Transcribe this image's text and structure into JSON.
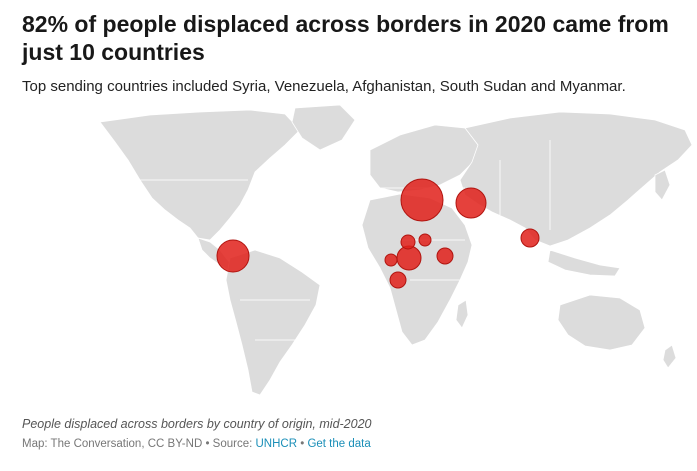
{
  "header": {
    "title": "82% of people displaced across borders in 2020 came from just 10 countries",
    "subtitle": "Top sending countries included Syria, Venezuela, Afghanistan, South Sudan and Myanmar."
  },
  "map": {
    "land_color": "#dcdcdc",
    "bubble_color": "#e0201a",
    "bubbles": [
      {
        "country": "Syria",
        "size_rank": 1
      },
      {
        "country": "Venezuela",
        "size_rank": 2
      },
      {
        "country": "Afghanistan",
        "size_rank": 3
      },
      {
        "country": "South Sudan",
        "size_rank": 4
      },
      {
        "country": "Myanmar",
        "size_rank": 5
      }
    ]
  },
  "footer": {
    "caption": "People displaced across borders by country of origin, mid-2020",
    "credit_prefix": "Map: The Conversation, CC BY-ND • Source: ",
    "source_link": "UNHCR",
    "separator": " • ",
    "data_link": "Get the data"
  },
  "colors": {
    "link": "#1b8fb8"
  }
}
